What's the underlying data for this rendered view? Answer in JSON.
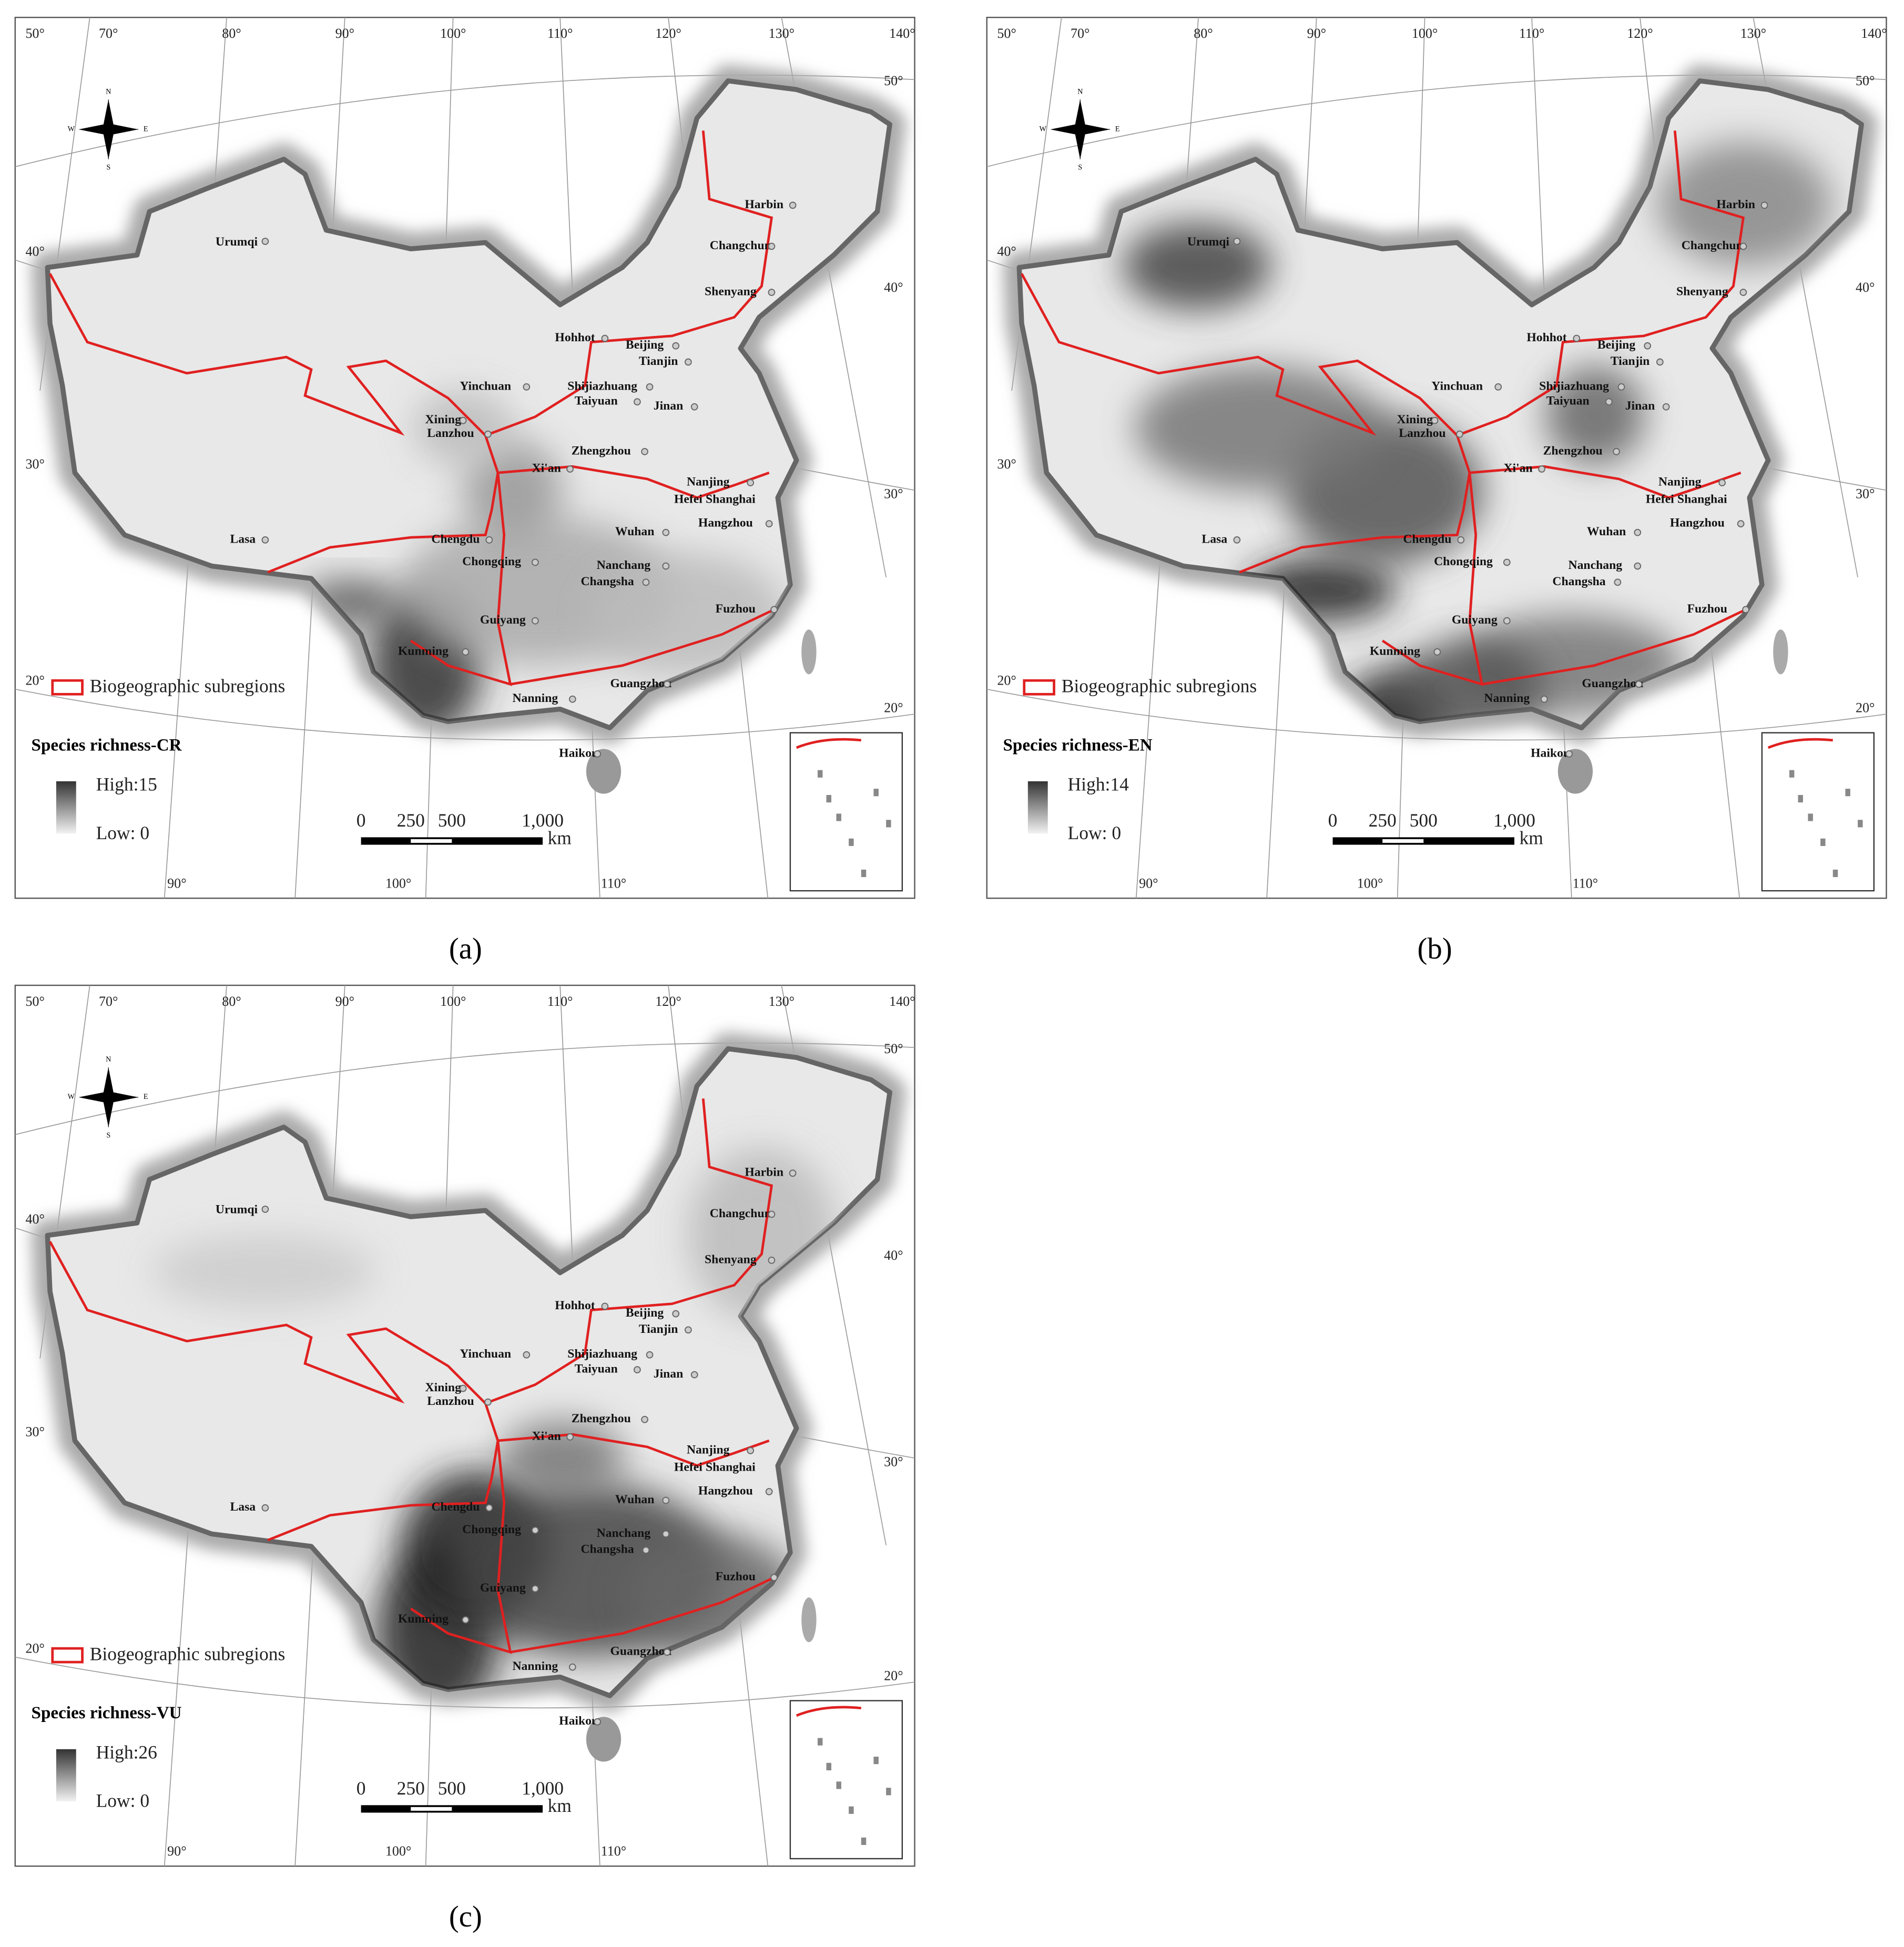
{
  "panels": [
    {
      "title": "Species richness-CR",
      "high": "High:15",
      "low": "Low: 0",
      "legend": "Biogeographic subregions",
      "caption": "(a)"
    },
    {
      "title": "Species richness-EN",
      "high": "High:14",
      "low": "Low: 0",
      "legend": "Biogeographic subregions",
      "caption": "(b)"
    },
    {
      "title": "Species richness-VU",
      "high": "High:26",
      "low": "Low: 0",
      "legend": "Biogeographic subregions",
      "caption": "(c)"
    }
  ],
  "graticule": {
    "top": [
      "50°",
      "70°",
      "80°",
      "90°",
      "100°",
      "110°",
      "120°",
      "130°",
      "140°"
    ],
    "left": [
      "40°",
      "30°",
      "20°"
    ],
    "right": [
      "50°",
      "40°",
      "30°",
      "20°"
    ],
    "bottom": [
      "90°",
      "100°",
      "110°"
    ]
  },
  "cities": [
    "Urumqi",
    "Harbin",
    "Changchun",
    "Shenyang",
    "Hohhot",
    "Beijing",
    "Tianjin",
    "Yinchuan",
    "Shijiazhuang",
    "Taiyuan",
    "Jinan",
    "Xining",
    "Lanzhou",
    "Zhengzhou",
    "Xi'an",
    "Nanjing",
    "Hefei",
    "Shanghai",
    "Hangzhou",
    "Lasa",
    "Chengdu",
    "Wuhan",
    "Chongqing",
    "Nanchang",
    "Changsha",
    "Fuzhou",
    "Guiyang",
    "Kunming",
    "Guangzhou",
    "Nanning",
    "Haikou"
  ],
  "compass": {
    "n": "N",
    "s": "S",
    "e": "E",
    "w": "W"
  },
  "scale_bar": {
    "labels": [
      "0",
      "250",
      "500",
      "1,000"
    ],
    "unit": "km"
  }
}
